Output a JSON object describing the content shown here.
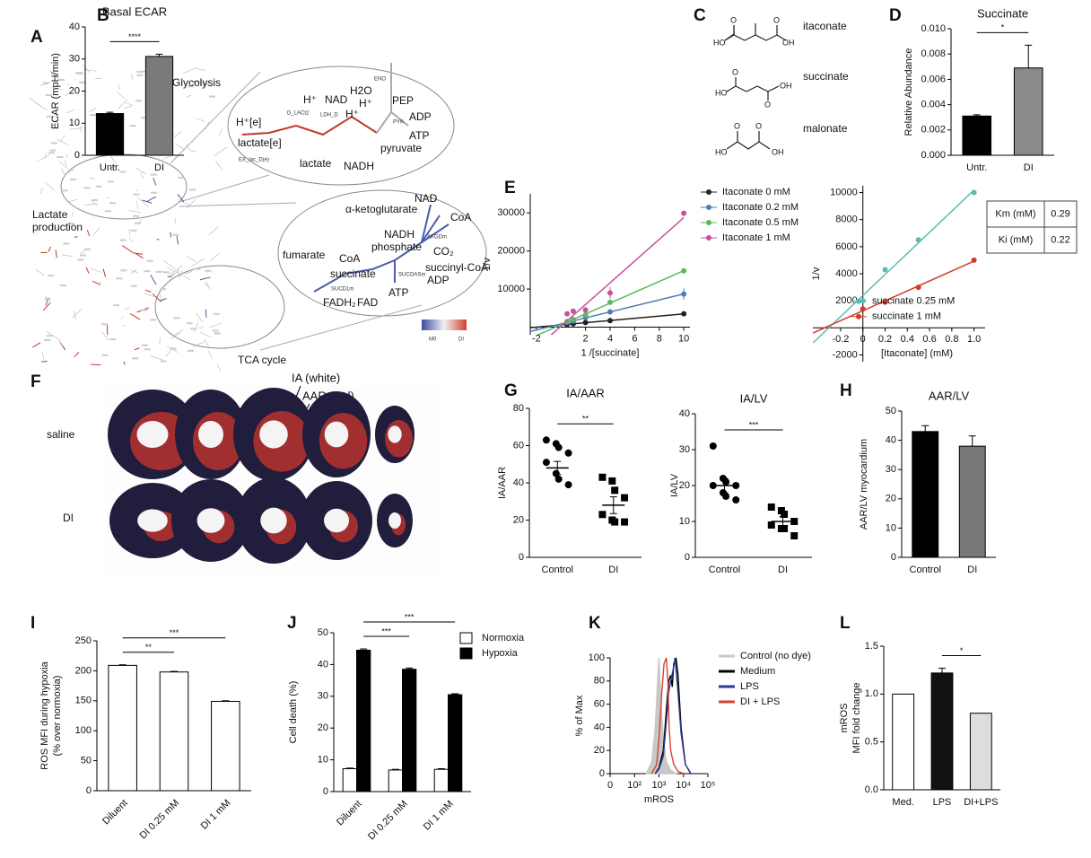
{
  "panels": [
    "A",
    "B",
    "C",
    "D",
    "E",
    "F",
    "G",
    "H",
    "I",
    "J",
    "K",
    "L"
  ],
  "panel_a": {
    "labels": [
      "Glycolysis",
      "Lactate",
      "production",
      "TCA cycle"
    ],
    "zoom_glycolysis": [
      "H⁺[e]",
      "H⁺",
      "NAD",
      "H2O",
      "ENO",
      "PEP",
      "ADP",
      "lactate[e]",
      "D_LACt2",
      "LDH_D",
      "H⁺",
      "H⁺",
      "PYK",
      "ATP",
      "EX_lac_D(e)",
      "lactate",
      "NADH",
      "pyruvate"
    ],
    "zoom_tca": [
      "NAD",
      "α-ketoglutarate",
      "CoA",
      "AKGDm",
      "NADH",
      "phosphate",
      "CO₂",
      "fumarate",
      "CoA",
      "succinyl-CoA",
      "succinate",
      "SUCOASm",
      "ADP",
      "SUCD1m",
      "FADH₂",
      "FAD",
      "ATP"
    ],
    "colorbar": [
      "M0",
      "DI"
    ]
  },
  "panel_c": {
    "structures": [
      {
        "name": "itaconate",
        "atoms": [
          "HO",
          "O",
          "OH",
          "O"
        ]
      },
      {
        "name": "succinate",
        "atoms": [
          "O",
          "HO",
          "OH",
          "O"
        ]
      },
      {
        "name": "malonate",
        "atoms": [
          "O",
          "O",
          "HO",
          "OH"
        ]
      }
    ]
  },
  "panel_f": {
    "rows": [
      "saline",
      "DI"
    ],
    "annotations": [
      "IA (white)",
      "AAR (red)"
    ]
  },
  "chart_data": [
    {
      "type": "bar",
      "title": "Basal ECAR",
      "ylabel": "ECAR (mpH/min)",
      "categories": [
        "Untr.",
        "DI"
      ],
      "values": [
        13,
        30.8
      ],
      "errors": [
        0.4,
        0.7
      ],
      "colors": [
        "#000000",
        "#7a7a7a"
      ],
      "ylim": [
        0,
        40
      ],
      "yticks": [
        0,
        10,
        20,
        30,
        40
      ],
      "significance": [
        {
          "groups": [
            "Untr.",
            "DI"
          ],
          "label": "****"
        }
      ]
    },
    {
      "type": "bar",
      "title": "Succinate",
      "ylabel": "Relative Abundance",
      "categories": [
        "Untr.",
        "DI"
      ],
      "values": [
        0.0031,
        0.0069
      ],
      "errors": [
        0.0001,
        0.0018
      ],
      "colors": [
        "#000000",
        "#8a8a8a"
      ],
      "ylim": [
        0,
        0.01
      ],
      "yticks": [
        {
          "value": 0,
          "label": "0.000"
        },
        0.002,
        0.004,
        0.006,
        0.008,
        {
          "value": 0.01,
          "label": "0.010"
        }
      ],
      "significance": [
        {
          "groups": [
            "Untr.",
            "DI"
          ],
          "label": "*"
        }
      ]
    },
    {
      "type": "scatter",
      "xlabel": "1 /[succinate]",
      "ylabel": "1/v",
      "fit": "linear",
      "legend": "outside upper right",
      "xlim": [
        -2.5,
        10.5
      ],
      "xticks": [
        -2,
        2,
        4,
        6,
        8,
        10
      ],
      "ylim": [
        -2000,
        35000
      ],
      "yticks": [
        10000,
        20000,
        30000
      ],
      "series": [
        {
          "name": "Itaconate 0 mM",
          "color": "#222222",
          "x": [
            0.5,
            1,
            2,
            4,
            10
          ],
          "values": [
            700,
            900,
            1200,
            1700,
            3500
          ],
          "errors": [
            null,
            null,
            null,
            null,
            null
          ]
        },
        {
          "name": "Itaconate 0.2 mM",
          "color": "#4a7fb5",
          "x": [
            0.5,
            1,
            2,
            4,
            10
          ],
          "values": [
            1200,
            1600,
            2500,
            4000,
            8700
          ],
          "errors": [
            null,
            null,
            null,
            null,
            1500
          ]
        },
        {
          "name": "Itaconate 0.5 mM",
          "color": "#5cb85c",
          "x": [
            0.5,
            1,
            2,
            4,
            10
          ],
          "values": [
            1500,
            2000,
            3200,
            6500,
            14800
          ],
          "errors": [
            null,
            null,
            null,
            null,
            null
          ]
        },
        {
          "name": "Itaconate 1 mM",
          "color": "#c94f9e",
          "x": [
            0.5,
            1,
            2,
            4,
            10
          ],
          "values": [
            3500,
            4200,
            4500,
            9000,
            29900
          ],
          "errors": [
            null,
            null,
            null,
            1500,
            null
          ]
        }
      ]
    },
    {
      "type": "scatter",
      "xlabel": "[Itaconate] (mM)",
      "ylabel": "1/v",
      "fit": "linear",
      "axes": "origin",
      "legend": "lower right",
      "xlim": [
        -0.45,
        1.1
      ],
      "xticks": [
        -0.2,
        0,
        0.2,
        0.4,
        0.6,
        0.8,
        {
          "value": 1,
          "label": "1.0"
        }
      ],
      "ylim": [
        -2500,
        10500
      ],
      "yticks": [
        -2000,
        2000,
        4000,
        6000,
        8000,
        10000
      ],
      "series": [
        {
          "name": "succinate 0.25 mM",
          "color": "#5bbcb0",
          "x": [
            0,
            0.2,
            0.5,
            1
          ],
          "values": [
            2000,
            4300,
            6500,
            10000
          ]
        },
        {
          "name": "succinate 1 mM",
          "color": "#d43a2a",
          "x": [
            0,
            0.2,
            0.5,
            1
          ],
          "values": [
            1400,
            1900,
            3000,
            5000
          ]
        }
      ],
      "table": [
        [
          "Km (mM)",
          0.29
        ],
        [
          "Ki (mM)",
          0.22
        ]
      ]
    },
    {
      "type": "strip",
      "title": "IA/AAR",
      "ylabel": "IA/AAR",
      "categories": [
        "Control",
        "DI"
      ],
      "markers": [
        "circle",
        "square"
      ],
      "points": [
        [
          63,
          61,
          59,
          56,
          51,
          45,
          42,
          39
        ],
        [
          43,
          41,
          36,
          32,
          23,
          20,
          19,
          19
        ]
      ],
      "means": [
        48,
        28
      ],
      "errors": [
        3.5,
        4.5
      ],
      "ylim": [
        0,
        80
      ],
      "yticks": [
        0,
        20,
        40,
        60,
        80
      ],
      "significance": [
        {
          "groups": [
            "Control",
            "DI"
          ],
          "label": "**"
        }
      ]
    },
    {
      "type": "strip",
      "title": "IA/LV",
      "ylabel": "IA/LV",
      "categories": [
        "Control",
        "DI"
      ],
      "markers": [
        "circle",
        "square"
      ],
      "points": [
        [
          31,
          22,
          21,
          20,
          20,
          18,
          17,
          16
        ],
        [
          14,
          13,
          12,
          10,
          9,
          8,
          8,
          6
        ]
      ],
      "means": [
        20,
        10
      ],
      "errors": [
        2,
        1.3
      ],
      "ylim": [
        0,
        40
      ],
      "yticks": [
        0,
        10,
        20,
        30,
        40
      ],
      "significance": [
        {
          "groups": [
            "Control",
            "DI"
          ],
          "label": "***"
        }
      ]
    },
    {
      "type": "bar",
      "title": "AAR/LV",
      "ylabel": "AAR/LV myocardium",
      "categories": [
        "Control",
        "DI"
      ],
      "values": [
        43,
        38
      ],
      "errors": [
        2,
        3.5
      ],
      "colors": [
        "#000000",
        "#777777"
      ],
      "ylim": [
        0,
        50
      ],
      "yticks": [
        0,
        10,
        20,
        30,
        40,
        50
      ]
    },
    {
      "type": "bar",
      "ylabel": [
        "ROS MFI during hypoxia",
        "(% over normoxia)"
      ],
      "xtick_rotation": 45,
      "categories": [
        "Diluent",
        "DI 0.25 mM",
        "DI 1 mM"
      ],
      "values": [
        209,
        198,
        149
      ],
      "errors": [
        1,
        1,
        1
      ],
      "colors": [
        "#ffffff",
        "#ffffff",
        "#ffffff"
      ],
      "ylim": [
        0,
        250
      ],
      "yticks": [
        0,
        50,
        100,
        150,
        200,
        250
      ],
      "significance": [
        {
          "groups": [
            "Diluent",
            "DI 0.25 mM"
          ],
          "label": "**"
        },
        {
          "groups": [
            "Diluent",
            "DI 1 mM"
          ],
          "label": "***"
        }
      ]
    },
    {
      "type": "bar",
      "ylabel": "Cell death (%)",
      "xtick_rotation": 45,
      "legend": "upper right",
      "categories": [
        "Diluent",
        "DI 0.25 mM",
        "DI 1 mM"
      ],
      "series": [
        {
          "name": "Normoxia",
          "color": "#ffffff",
          "values": [
            7.2,
            6.8,
            7.0
          ],
          "errors": [
            0.2,
            0.2,
            0.2
          ]
        },
        {
          "name": "Hypoxia",
          "color": "#000000",
          "values": [
            44.5,
            38.5,
            30.5
          ],
          "errors": [
            0.4,
            0.4,
            0.3
          ]
        }
      ],
      "ylim": [
        0,
        50
      ],
      "yticks": [
        0,
        10,
        20,
        30,
        40,
        50
      ],
      "significance": [
        {
          "groups": [
            "Diluent",
            "DI 0.25 mM"
          ],
          "series": "Hypoxia",
          "label": "***"
        },
        {
          "groups": [
            "Diluent",
            "DI 1 mM"
          ],
          "series": "Hypoxia",
          "label": "***"
        }
      ]
    },
    {
      "type": "line",
      "xlabel": "mROS",
      "ylabel": "% of Max",
      "xscale": "symlog",
      "linthresh": 100,
      "legend": "outside upper right",
      "xlim": [
        0,
        100000
      ],
      "xticks": [
        0,
        {
          "value": 100,
          "label": "10²"
        },
        {
          "value": 1000,
          "label": "10³"
        },
        {
          "value": 10000,
          "label": "10⁴"
        },
        {
          "value": 100000,
          "label": "10⁵"
        }
      ],
      "ylim": [
        0,
        100
      ],
      "yticks": [
        0,
        20,
        40,
        60,
        80,
        100
      ],
      "series": [
        {
          "name": "Control (no dye)",
          "color": "#c8c8c8",
          "fill": true,
          "x": [
            300,
            500,
            700,
            900,
            1000,
            1100,
            1300,
            1600,
            2000,
            3000,
            5000
          ],
          "values": [
            0,
            10,
            40,
            85,
            100,
            80,
            50,
            25,
            10,
            3,
            0
          ]
        },
        {
          "name": "Medium",
          "color": "#000000",
          "x": [
            700,
            1000,
            1500,
            2000,
            2500,
            3000,
            3500,
            4000,
            5000,
            6000,
            8000,
            12000,
            20000
          ],
          "values": [
            0,
            5,
            20,
            55,
            80,
            85,
            75,
            95,
            100,
            85,
            40,
            8,
            0
          ]
        },
        {
          "name": "LPS",
          "color": "#2b3990",
          "x": [
            700,
            1000,
            1500,
            2000,
            2500,
            3000,
            4000,
            4500,
            5000,
            6000,
            8000,
            12000,
            20000
          ],
          "values": [
            0,
            4,
            15,
            45,
            70,
            80,
            92,
            100,
            90,
            70,
            35,
            8,
            0
          ]
        },
        {
          "name": "DI + LPS",
          "color": "#d9412f",
          "x": [
            500,
            800,
            1000,
            1300,
            1600,
            2000,
            2300,
            2600,
            3000,
            4000,
            6000,
            10000
          ],
          "values": [
            0,
            8,
            30,
            70,
            95,
            100,
            80,
            40,
            20,
            8,
            2,
            0
          ]
        }
      ]
    },
    {
      "type": "bar",
      "ylabel": [
        "mROS",
        "MFI fold change"
      ],
      "categories": [
        "Med.",
        "LPS",
        "DI+LPS"
      ],
      "values": [
        1.0,
        1.22,
        0.8
      ],
      "errors": [
        null,
        0.05,
        null
      ],
      "colors": [
        "#ffffff",
        "#111111",
        "#dddddd"
      ],
      "ylim": [
        0,
        1.5
      ],
      "yticks": [
        {
          "value": 0,
          "label": "0.0"
        },
        0.5,
        {
          "value": 1,
          "label": "1.0"
        },
        1.5
      ],
      "significance": [
        {
          "groups": [
            "LPS",
            "DI+LPS"
          ],
          "label": "*"
        }
      ]
    }
  ]
}
